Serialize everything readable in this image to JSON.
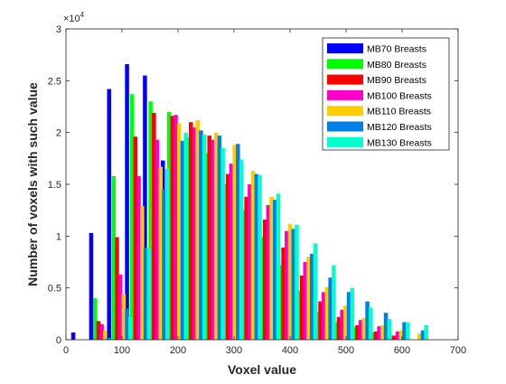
{
  "chart_data": {
    "type": "bar",
    "title": "",
    "xlabel": "Voxel value",
    "ylabel": "Number of voxels with such value",
    "exponent_label": "×10",
    "exponent_power": "4",
    "xlim": [
      0,
      700
    ],
    "ylim": [
      0,
      3
    ],
    "y_scale_factor": 10000,
    "xticks": [
      "0",
      "100",
      "200",
      "300",
      "400",
      "500",
      "600",
      "700"
    ],
    "yticks": [
      "0",
      "0.5",
      "1",
      "1.5",
      "2",
      "2.5",
      "3"
    ],
    "grid": false,
    "legend_position": "top-right",
    "bar_width": 4.5,
    "series": [
      {
        "name": "MB70 Breasts",
        "color": "#0000ff",
        "x": [
          13,
          45,
          77,
          109,
          141,
          173,
          205,
          237,
          269,
          301,
          333,
          365,
          397,
          429,
          461,
          493,
          525,
          557,
          589,
          621
        ],
        "values": [
          0.07,
          1.03,
          2.42,
          2.66,
          2.55,
          1.73,
          1.65,
          1.85,
          1.8,
          1.58,
          1.3,
          1.0,
          0.74,
          0.48,
          0.24,
          0.1,
          0.02,
          0.01,
          0.0,
          0.0
        ]
      },
      {
        "name": "MB80 Breasts",
        "color": "#00ff00",
        "x": [
          19,
          52,
          85,
          118,
          151,
          184,
          217,
          250,
          283,
          316,
          349,
          382,
          415,
          448,
          481,
          514,
          547,
          580,
          613,
          646
        ],
        "values": [
          0.0,
          0.4,
          1.58,
          2.37,
          2.3,
          2.2,
          1.95,
          1.8,
          1.5,
          1.25,
          0.99,
          0.72,
          0.47,
          0.27,
          0.17,
          0.12,
          0.07,
          0.04,
          0.0,
          0.0
        ]
      },
      {
        "name": "MB90 Breasts",
        "color": "#ff0000",
        "x": [
          25,
          58,
          91,
          124,
          157,
          190,
          223,
          256,
          289,
          322,
          355,
          388,
          421,
          454,
          487,
          520,
          553,
          586,
          619
        ],
        "values": [
          0.0,
          0.18,
          0.99,
          1.96,
          2.19,
          2.16,
          2.1,
          1.97,
          1.6,
          1.38,
          1.16,
          0.89,
          0.62,
          0.37,
          0.22,
          0.14,
          0.08,
          0.04,
          0.0
        ]
      },
      {
        "name": "MB100 Breasts",
        "color": "#ff00cc",
        "x": [
          31,
          64,
          97,
          130,
          163,
          196,
          229,
          262,
          295,
          328,
          361,
          394,
          427,
          460,
          493,
          526,
          559,
          592
        ],
        "values": [
          0.0,
          0.15,
          0.63,
          1.58,
          1.93,
          2.17,
          2.05,
          1.93,
          1.7,
          1.5,
          1.3,
          1.05,
          0.75,
          0.46,
          0.29,
          0.19,
          0.13,
          0.08
        ]
      },
      {
        "name": "MB110 Breasts",
        "color": "#ffcc00",
        "x": [
          37,
          70,
          103,
          136,
          169,
          202,
          235,
          268,
          301,
          334,
          367,
          400,
          433,
          466,
          499,
          532,
          565,
          598,
          631
        ],
        "values": [
          0.0,
          0.09,
          0.44,
          1.29,
          1.67,
          2.09,
          2.12,
          2.0,
          1.88,
          1.63,
          1.38,
          1.12,
          0.8,
          0.51,
          0.33,
          0.21,
          0.14,
          0.09,
          0.06
        ]
      },
      {
        "name": "MB120 Breasts",
        "color": "#0080e6",
        "x": [
          43,
          76,
          109,
          142,
          175,
          208,
          241,
          274,
          307,
          340,
          373,
          406,
          439,
          472,
          505,
          538,
          571,
          604,
          637
        ],
        "values": [
          0.0,
          0.02,
          0.3,
          0.89,
          1.45,
          1.92,
          2.02,
          1.97,
          1.89,
          1.6,
          1.35,
          1.07,
          0.83,
          0.6,
          0.46,
          0.37,
          0.26,
          0.17,
          0.09
        ]
      },
      {
        "name": "MB130 Breasts",
        "color": "#00ffcc",
        "x": [
          49,
          82,
          115,
          148,
          181,
          214,
          247,
          280,
          313,
          346,
          379,
          412,
          445,
          478,
          511,
          544,
          577,
          610,
          643
        ],
        "values": [
          0.0,
          0.0,
          0.22,
          0.88,
          1.65,
          2.0,
          1.98,
          1.85,
          1.74,
          1.59,
          1.41,
          1.11,
          0.93,
          0.72,
          0.5,
          0.31,
          0.2,
          0.17,
          0.14
        ]
      }
    ]
  }
}
